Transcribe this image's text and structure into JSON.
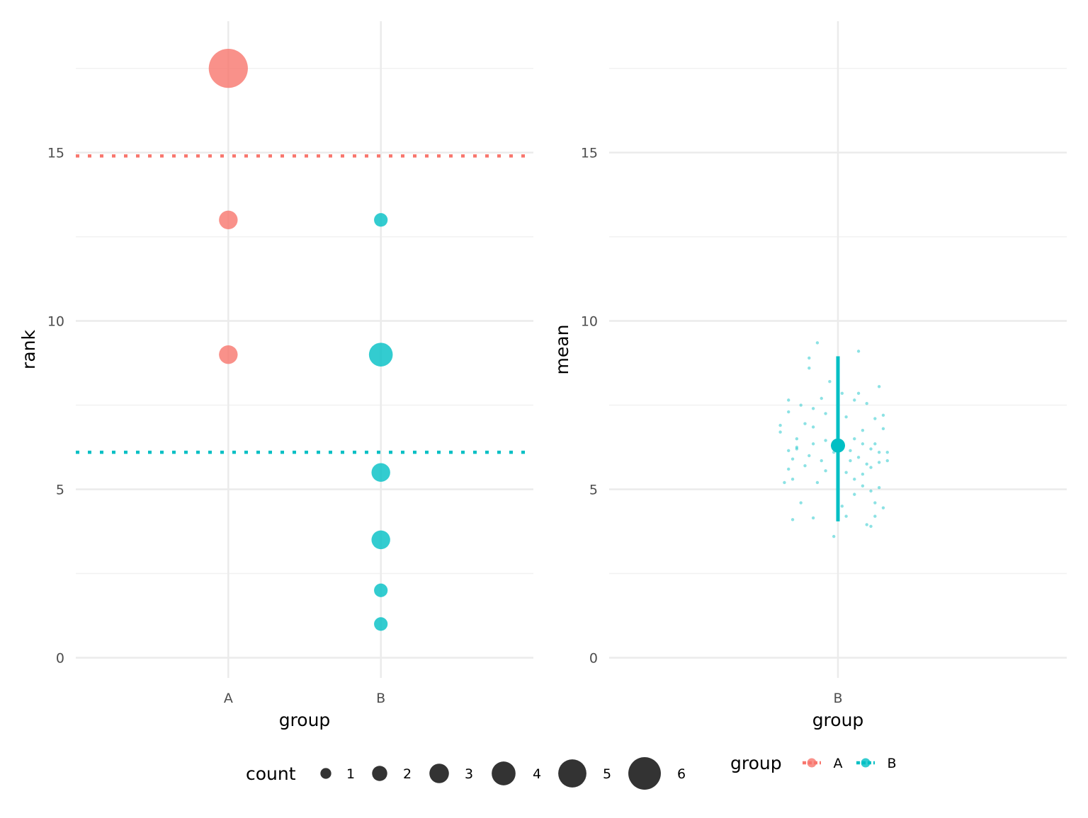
{
  "chart_data": [
    {
      "type": "scatter",
      "xlabel": "group",
      "ylabel": "rank",
      "categories": [
        "A",
        "B"
      ],
      "ylim": [
        -0.6,
        18.9
      ],
      "y_ticks": [
        0,
        5,
        10,
        15
      ],
      "grid": true,
      "series": [
        {
          "name": "A",
          "color": "#F8766D",
          "points": [
            {
              "x": "A",
              "y": 17.5,
              "count": 6
            },
            {
              "x": "A",
              "y": 13,
              "count": 2
            },
            {
              "x": "A",
              "y": 9,
              "count": 2
            }
          ],
          "mean_line": 14.9
        },
        {
          "name": "B",
          "color": "#00BFC4",
          "points": [
            {
              "x": "B",
              "y": 13,
              "count": 1
            },
            {
              "x": "B",
              "y": 9,
              "count": 3
            },
            {
              "x": "B",
              "y": 5.5,
              "count": 2
            },
            {
              "x": "B",
              "y": 3.5,
              "count": 2
            },
            {
              "x": "B",
              "y": 2,
              "count": 1
            },
            {
              "x": "B",
              "y": 1,
              "count": 1
            }
          ],
          "mean_line": 6.1
        }
      ]
    },
    {
      "type": "scatter",
      "xlabel": "group",
      "ylabel": "mean",
      "categories": [
        "B"
      ],
      "ylim": [
        -0.6,
        18.9
      ],
      "y_ticks": [
        0,
        5,
        10,
        15
      ],
      "grid": true,
      "series": [
        {
          "name": "B",
          "color": "#00BFC4",
          "summary": {
            "mean": 6.3,
            "lower": 4.05,
            "upper": 8.95
          },
          "jitter_points": [
            {
              "dx": -0.05,
              "y": 9.35
            },
            {
              "dx": 0.05,
              "y": 9.1
            },
            {
              "dx": -0.07,
              "y": 8.9
            },
            {
              "dx": -0.07,
              "y": 8.6
            },
            {
              "dx": -0.02,
              "y": 8.2
            },
            {
              "dx": 0.1,
              "y": 8.05
            },
            {
              "dx": 0.01,
              "y": 7.85
            },
            {
              "dx": 0.05,
              "y": 7.85
            },
            {
              "dx": -0.12,
              "y": 7.65
            },
            {
              "dx": -0.09,
              "y": 7.5
            },
            {
              "dx": -0.04,
              "y": 7.7
            },
            {
              "dx": 0.04,
              "y": 7.65
            },
            {
              "dx": 0.07,
              "y": 7.55
            },
            {
              "dx": -0.06,
              "y": 7.4
            },
            {
              "dx": -0.12,
              "y": 7.3
            },
            {
              "dx": -0.03,
              "y": 7.25
            },
            {
              "dx": 0.02,
              "y": 7.15
            },
            {
              "dx": 0.11,
              "y": 7.2
            },
            {
              "dx": 0.09,
              "y": 7.1
            },
            {
              "dx": -0.14,
              "y": 6.9
            },
            {
              "dx": -0.08,
              "y": 6.95
            },
            {
              "dx": -0.06,
              "y": 6.85
            },
            {
              "dx": 0.06,
              "y": 6.75
            },
            {
              "dx": 0.11,
              "y": 6.8
            },
            {
              "dx": -0.14,
              "y": 6.7
            },
            {
              "dx": -0.1,
              "y": 6.5
            },
            {
              "dx": -0.03,
              "y": 6.45
            },
            {
              "dx": 0.04,
              "y": 6.5
            },
            {
              "dx": -0.06,
              "y": 6.35
            },
            {
              "dx": 0.09,
              "y": 6.35
            },
            {
              "dx": -0.1,
              "y": 6.2
            },
            {
              "dx": -0.12,
              "y": 6.15
            },
            {
              "dx": -0.01,
              "y": 6.1
            },
            {
              "dx": 0.03,
              "y": 6.15
            },
            {
              "dx": 0.1,
              "y": 6.1
            },
            {
              "dx": 0.08,
              "y": 6.2
            },
            {
              "dx": -0.07,
              "y": 6.0
            },
            {
              "dx": 0.05,
              "y": 5.95
            },
            {
              "dx": -0.11,
              "y": 5.9
            },
            {
              "dx": -0.04,
              "y": 5.85
            },
            {
              "dx": 0.03,
              "y": 5.85
            },
            {
              "dx": 0.1,
              "y": 5.8
            },
            {
              "dx": -0.08,
              "y": 5.7
            },
            {
              "dx": 0.07,
              "y": 5.75
            },
            {
              "dx": -0.12,
              "y": 5.6
            },
            {
              "dx": -0.03,
              "y": 5.55
            },
            {
              "dx": 0.02,
              "y": 5.5
            },
            {
              "dx": 0.06,
              "y": 5.45
            },
            {
              "dx": -0.11,
              "y": 5.3
            },
            {
              "dx": 0.04,
              "y": 5.3
            },
            {
              "dx": -0.05,
              "y": 5.2
            },
            {
              "dx": -0.13,
              "y": 5.2
            },
            {
              "dx": 0.06,
              "y": 5.1
            },
            {
              "dx": 0.1,
              "y": 5.05
            },
            {
              "dx": 0.08,
              "y": 4.95
            },
            {
              "dx": 0.04,
              "y": 4.85
            },
            {
              "dx": 0.09,
              "y": 4.6
            },
            {
              "dx": 0.01,
              "y": 4.5
            },
            {
              "dx": -0.09,
              "y": 4.6
            },
            {
              "dx": 0.11,
              "y": 4.45
            },
            {
              "dx": 0.02,
              "y": 4.2
            },
            {
              "dx": -0.06,
              "y": 4.15
            },
            {
              "dx": 0.09,
              "y": 4.2
            },
            {
              "dx": -0.11,
              "y": 4.1
            },
            {
              "dx": 0.07,
              "y": 3.95
            },
            {
              "dx": 0.08,
              "y": 3.9
            },
            {
              "dx": -0.01,
              "y": 3.6
            },
            {
              "dx": 0.12,
              "y": 6.1
            },
            {
              "dx": 0.12,
              "y": 5.85
            },
            {
              "dx": 0.06,
              "y": 6.35
            },
            {
              "dx": 0.08,
              "y": 5.65
            },
            {
              "dx": -0.1,
              "y": 6.25
            }
          ]
        }
      ]
    }
  ],
  "legends": {
    "size": {
      "title": "count",
      "items": [
        {
          "label": "1",
          "count": 1
        },
        {
          "label": "2",
          "count": 2
        },
        {
          "label": "3",
          "count": 3
        },
        {
          "label": "4",
          "count": 4
        },
        {
          "label": "5",
          "count": 5
        },
        {
          "label": "6",
          "count": 6
        }
      ]
    },
    "group": {
      "title": "group",
      "items": [
        {
          "label": "A",
          "color": "#F8766D"
        },
        {
          "label": "B",
          "color": "#00BFC4"
        }
      ]
    }
  }
}
